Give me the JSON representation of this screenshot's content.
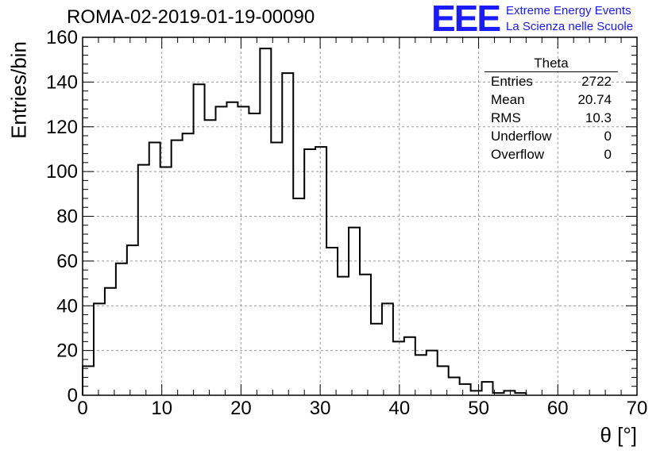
{
  "header": {
    "title": "ROMA-02-2019-01-19-00090",
    "logo_mark": "EEE",
    "logo_line1": "Extreme Energy Events",
    "logo_line2": "La Scienza nelle Scuole",
    "logo_color": "#1a1aff"
  },
  "stats_box": {
    "title": "Theta",
    "rows": [
      {
        "label": "Entries",
        "value": "2722"
      },
      {
        "label": "Mean",
        "value": "20.74"
      },
      {
        "label": "RMS",
        "value": "10.3"
      },
      {
        "label": "Underflow",
        "value": "0"
      },
      {
        "label": "Overflow",
        "value": "0"
      }
    ]
  },
  "chart_data": {
    "type": "bar",
    "style": "step-histogram",
    "xlabel": "θ [°]",
    "ylabel": "Entries/bin",
    "xlim": [
      0,
      70
    ],
    "ylim": [
      0,
      160
    ],
    "bin_width": 1.4,
    "bin_lefts": [
      0,
      1.4,
      2.8,
      4.2,
      5.6,
      7,
      8.4,
      9.8,
      11.2,
      12.6,
      14,
      15.4,
      16.8,
      18.2,
      19.6,
      21,
      22.4,
      23.8,
      25.2,
      26.6,
      28,
      29.4,
      30.8,
      32.2,
      33.6,
      35,
      36.4,
      37.8,
      39.2,
      40.6,
      42,
      43.4,
      44.8,
      46.2,
      47.6,
      49,
      50.4,
      51.8,
      53.2,
      54.6
    ],
    "values": [
      13,
      41,
      48,
      59,
      67,
      103,
      113,
      102,
      114,
      117,
      139,
      123,
      129,
      131,
      129,
      126,
      155,
      113,
      144,
      88,
      110,
      111,
      66,
      53,
      75,
      54,
      32,
      41,
      24,
      26,
      18,
      20,
      13,
      8,
      5,
      2,
      6,
      1,
      2,
      1
    ],
    "x_ticks": [
      0,
      10,
      20,
      30,
      40,
      50,
      60,
      70
    ],
    "y_ticks": [
      0,
      20,
      40,
      60,
      80,
      100,
      120,
      140,
      160
    ],
    "grid": true,
    "line_color": "#000000"
  }
}
